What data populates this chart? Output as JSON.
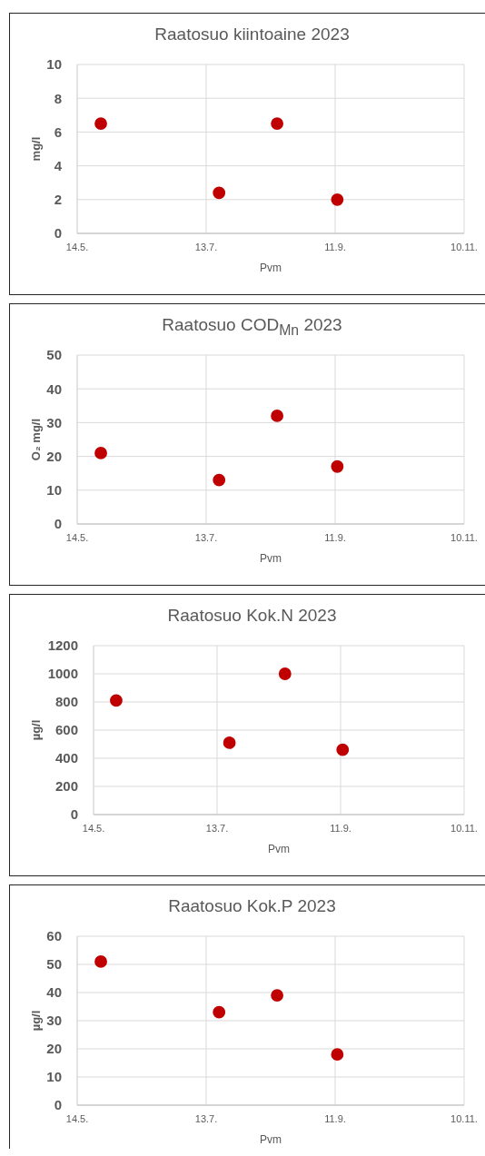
{
  "chart_data": [
    {
      "type": "scatter",
      "title": "Raatosuo kiintoaine 2023",
      "xlabel": "Pvm",
      "ylabel": "mg/l",
      "x": [
        "--05-25",
        "--07-19",
        "--08-15",
        "--09-12"
      ],
      "values": [
        6.5,
        2.4,
        6.5,
        2.0
      ],
      "color": "#c00000",
      "marker": "circle",
      "grid": true,
      "xlim": [
        "--05-14",
        "--11-10"
      ],
      "xticks": [
        {
          "value": "--05-14",
          "label": "14.5."
        },
        {
          "value": "--07-13",
          "label": "13.7."
        },
        {
          "value": "--09-11",
          "label": "11.9."
        },
        {
          "value": "--11-10",
          "label": "10.11."
        }
      ],
      "ylim": [
        0,
        10
      ],
      "yticks": [
        0,
        2,
        4,
        6,
        8,
        10
      ]
    },
    {
      "type": "scatter",
      "title": "Raatosuo COD$_{Mn}$ 2023",
      "xlabel": "Pvm",
      "ylabel": "O₂ mg/l",
      "x": [
        "--05-25",
        "--07-19",
        "--08-15",
        "--09-12"
      ],
      "values": [
        21,
        13,
        32,
        17
      ],
      "color": "#c00000",
      "marker": "circle",
      "grid": true,
      "xlim": [
        "--05-14",
        "--11-10"
      ],
      "xticks": [
        {
          "value": "--05-14",
          "label": "14.5."
        },
        {
          "value": "--07-13",
          "label": "13.7."
        },
        {
          "value": "--09-11",
          "label": "11.9."
        },
        {
          "value": "--11-10",
          "label": "10.11."
        }
      ],
      "ylim": [
        0,
        50
      ],
      "yticks": [
        0,
        10,
        20,
        30,
        40,
        50
      ]
    },
    {
      "type": "scatter",
      "title": "Raatosuo Kok.N 2023",
      "xlabel": "Pvm",
      "ylabel": "µg/l",
      "x": [
        "--05-25",
        "--07-19",
        "--08-15",
        "--09-12"
      ],
      "values": [
        810,
        510,
        1000,
        460
      ],
      "color": "#c00000",
      "marker": "circle",
      "grid": true,
      "xlim": [
        "--05-14",
        "--11-10"
      ],
      "xticks": [
        {
          "value": "--05-14",
          "label": "14.5."
        },
        {
          "value": "--07-13",
          "label": "13.7."
        },
        {
          "value": "--09-11",
          "label": "11.9."
        },
        {
          "value": "--11-10",
          "label": "10.11."
        }
      ],
      "ylim": [
        0,
        1200
      ],
      "yticks": [
        0,
        200,
        400,
        600,
        800,
        1000,
        1200
      ]
    },
    {
      "type": "scatter",
      "title": "Raatosuo Kok.P 2023",
      "xlabel": "Pvm",
      "ylabel": "µg/l",
      "x": [
        "--05-25",
        "--07-19",
        "--08-15",
        "--09-12"
      ],
      "values": [
        51,
        33,
        39,
        18
      ],
      "color": "#c00000",
      "marker": "circle",
      "grid": true,
      "xlim": [
        "--05-14",
        "--11-10"
      ],
      "xticks": [
        {
          "value": "--05-14",
          "label": "14.5."
        },
        {
          "value": "--07-13",
          "label": "13.7."
        },
        {
          "value": "--09-11",
          "label": "11.9."
        },
        {
          "value": "--11-10",
          "label": "10.11."
        }
      ],
      "ylim": [
        0,
        60
      ],
      "yticks": [
        0,
        10,
        20,
        30,
        40,
        50,
        60
      ]
    }
  ]
}
